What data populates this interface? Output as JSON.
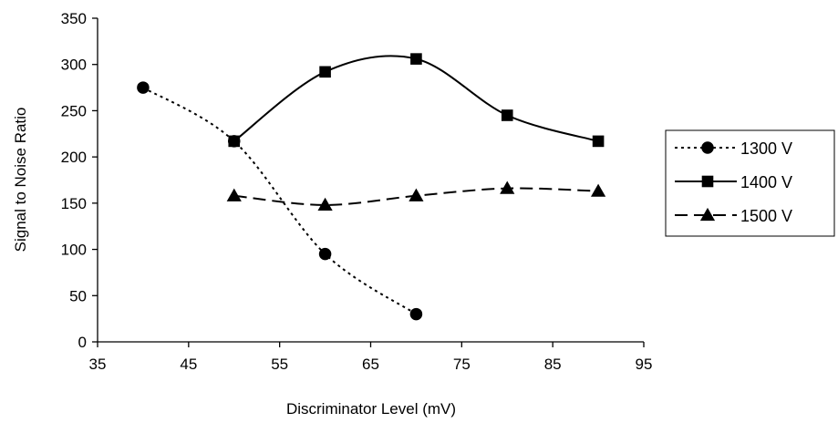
{
  "chart_data": {
    "type": "line",
    "xlabel": "Discriminator Level (mV)",
    "ylabel": "Signal to Noise Ratio",
    "xlim": [
      35,
      95
    ],
    "ylim": [
      0,
      350
    ],
    "xticks": [
      35,
      45,
      55,
      65,
      75,
      85,
      95
    ],
    "yticks": [
      0,
      50,
      100,
      150,
      200,
      250,
      300,
      350
    ],
    "grid": false,
    "legend_position": "right",
    "series": [
      {
        "name": "1300 V",
        "marker": "circle",
        "line_style": "dotted",
        "smooth": true,
        "x": [
          40,
          50,
          60,
          70
        ],
        "y": [
          275,
          217,
          95,
          30
        ]
      },
      {
        "name": "1400 V",
        "marker": "square",
        "line_style": "solid",
        "smooth": true,
        "x": [
          50,
          60,
          70,
          80,
          90
        ],
        "y": [
          217,
          292,
          306,
          245,
          217
        ]
      },
      {
        "name": "1500 V",
        "marker": "triangle",
        "line_style": "dashed",
        "smooth": true,
        "x": [
          50,
          60,
          70,
          80,
          90
        ],
        "y": [
          158,
          148,
          158,
          166,
          163
        ]
      }
    ],
    "colors": {
      "line": "#000000",
      "background": "#ffffff"
    }
  }
}
